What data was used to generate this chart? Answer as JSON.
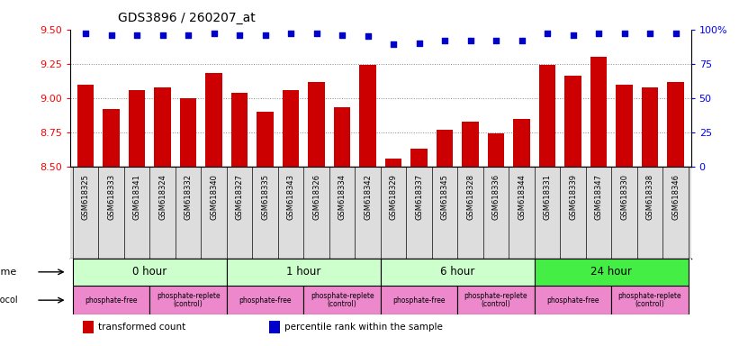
{
  "title": "GDS3896 / 260207_at",
  "samples": [
    "GSM618325",
    "GSM618333",
    "GSM618341",
    "GSM618324",
    "GSM618332",
    "GSM618340",
    "GSM618327",
    "GSM618335",
    "GSM618343",
    "GSM618326",
    "GSM618334",
    "GSM618342",
    "GSM618329",
    "GSM618337",
    "GSM618345",
    "GSM618328",
    "GSM618336",
    "GSM618344",
    "GSM618331",
    "GSM618339",
    "GSM618347",
    "GSM618330",
    "GSM618338",
    "GSM618346"
  ],
  "transformed_count": [
    9.1,
    8.92,
    9.06,
    9.08,
    9.0,
    9.18,
    9.04,
    8.9,
    9.06,
    9.12,
    8.93,
    9.24,
    8.56,
    8.63,
    8.77,
    8.83,
    8.74,
    8.85,
    9.24,
    9.16,
    9.3,
    9.1,
    9.08,
    9.12
  ],
  "percentile_rank": [
    97,
    96,
    96,
    96,
    96,
    97,
    96,
    96,
    97,
    97,
    96,
    95,
    89,
    90,
    92,
    92,
    92,
    92,
    97,
    96,
    97,
    97,
    97,
    97
  ],
  "ylim_left": [
    8.5,
    9.5
  ],
  "ylim_right": [
    0,
    100
  ],
  "yticks_left": [
    8.5,
    8.75,
    9.0,
    9.25,
    9.5
  ],
  "yticks_right": [
    0,
    25,
    50,
    75,
    100
  ],
  "bar_color": "#cc0000",
  "dot_color": "#0000cc",
  "bg_color": "#ffffff",
  "label_bg_color": "#dddddd",
  "grid_color": "#888888",
  "dotted_grid_values": [
    8.75,
    9.0,
    9.25
  ],
  "time_groups": [
    {
      "label": "0 hour",
      "start": 0,
      "end": 6,
      "color": "#ccffcc"
    },
    {
      "label": "1 hour",
      "start": 6,
      "end": 12,
      "color": "#ccffcc"
    },
    {
      "label": "6 hour",
      "start": 12,
      "end": 18,
      "color": "#ccffcc"
    },
    {
      "label": "24 hour",
      "start": 18,
      "end": 24,
      "color": "#44ee44"
    }
  ],
  "protocol_groups": [
    {
      "label": "phosphate-free",
      "start": 0,
      "end": 3
    },
    {
      "label": "phosphate-replete\n(control)",
      "start": 3,
      "end": 6
    },
    {
      "label": "phosphate-free",
      "start": 6,
      "end": 9
    },
    {
      "label": "phosphate-replete\n(control)",
      "start": 9,
      "end": 12
    },
    {
      "label": "phosphate-free",
      "start": 12,
      "end": 15
    },
    {
      "label": "phosphate-replete\n(control)",
      "start": 15,
      "end": 18
    },
    {
      "label": "phosphate-free",
      "start": 18,
      "end": 21
    },
    {
      "label": "phosphate-replete\n(control)",
      "start": 21,
      "end": 24
    }
  ],
  "protocol_color": "#ee88cc",
  "legend_items": [
    {
      "color": "#cc0000",
      "label": "transformed count"
    },
    {
      "color": "#0000cc",
      "label": "percentile rank within the sample"
    }
  ]
}
